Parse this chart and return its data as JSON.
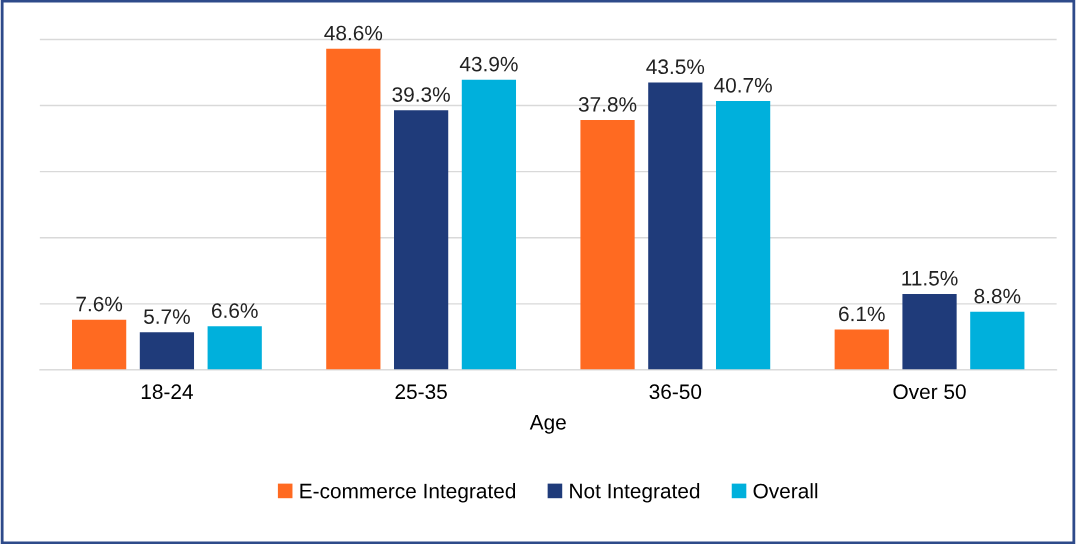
{
  "chart_data": {
    "type": "bar",
    "xlabel": "Age",
    "categories": [
      "18-24",
      "25-35",
      "36-50",
      "Over 50"
    ],
    "series": [
      {
        "name": "E-commerce Integrated",
        "color": "#ff6a21",
        "values": [
          7.6,
          48.6,
          37.8,
          6.1
        ],
        "value_labels": [
          "7.6%",
          "48.6%",
          "37.8%",
          "6.1%"
        ]
      },
      {
        "name": "Not Integrated",
        "color": "#1f3b7a",
        "values": [
          5.7,
          39.3,
          43.5,
          11.5
        ],
        "value_labels": [
          "5.7%",
          "39.3%",
          "43.5%",
          "11.5%"
        ]
      },
      {
        "name": "Overall",
        "color": "#00b0dc",
        "values": [
          6.6,
          43.9,
          40.7,
          8.8
        ],
        "value_labels": [
          "6.6%",
          "43.9%",
          "40.7%",
          "8.8%"
        ]
      }
    ],
    "tick_labels": "x",
    "grid": "y",
    "legend": "bottom"
  }
}
